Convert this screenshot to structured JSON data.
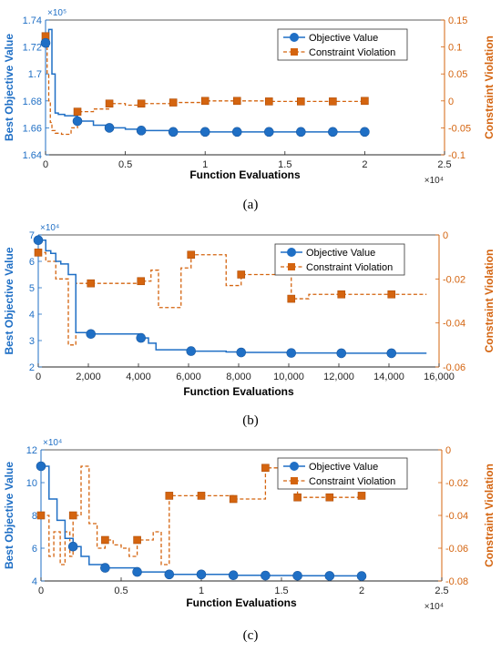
{
  "colors": {
    "objective": "#1f6fc5",
    "constraint": "#d4640f",
    "axis": "#262626"
  },
  "chart_data": [
    {
      "panel_label": "(a)",
      "type": "line",
      "xlabel": "Function Evaluations",
      "ylabel_left": "Best Objective Value",
      "ylabel_right": "Constraint Violation",
      "x_multiplier": "×10⁴",
      "y_multiplier": "×10⁵",
      "xlim": [
        0,
        2.5
      ],
      "ylim_left": [
        1.64,
        1.74
      ],
      "ylim_right": [
        -0.1,
        0.15
      ],
      "x_ticks": [
        "0",
        "0.5",
        "1",
        "1.5",
        "2",
        "2.5"
      ],
      "y_ticks_left": [
        "1.64",
        "1.66",
        "1.68",
        "1.7",
        "1.72",
        "1.74"
      ],
      "y_ticks_right": [
        "-0.1",
        "-0.05",
        "0",
        "0.05",
        "0.1",
        "0.15"
      ],
      "legend": {
        "position": "top-right",
        "entries": [
          "Objective Value",
          "Constraint Violation"
        ]
      },
      "series": [
        {
          "name": "Objective Value",
          "axis": "left",
          "x": [
            0,
            0.02,
            0.04,
            0.06,
            0.08,
            0.12,
            0.2,
            0.3,
            0.4,
            0.5,
            0.6,
            0.8,
            1.0,
            1.2,
            1.4,
            1.6,
            1.8,
            2.0
          ],
          "y": [
            1.723,
            1.733,
            1.7,
            1.671,
            1.67,
            1.669,
            1.665,
            1.662,
            1.66,
            1.659,
            1.658,
            1.657,
            1.657,
            1.657,
            1.657,
            1.657,
            1.657,
            1.657
          ],
          "marker_x": [
            0,
            0.2,
            0.4,
            0.6,
            0.8,
            1.0,
            1.2,
            1.4,
            1.6,
            1.8,
            2.0
          ],
          "marker_y": [
            1.723,
            1.665,
            1.66,
            1.658,
            1.657,
            1.657,
            1.657,
            1.657,
            1.657,
            1.657,
            1.657
          ]
        },
        {
          "name": "Constraint Violation",
          "axis": "right",
          "x": [
            0,
            0.01,
            0.02,
            0.03,
            0.04,
            0.06,
            0.1,
            0.16,
            0.2,
            0.3,
            0.4,
            0.5,
            0.6,
            0.8,
            1.0,
            1.2,
            1.4,
            1.6,
            1.8,
            2.0
          ],
          "y": [
            0.12,
            0.05,
            0.0,
            -0.04,
            -0.055,
            -0.06,
            -0.062,
            -0.05,
            -0.02,
            -0.015,
            -0.005,
            -0.008,
            -0.005,
            -0.003,
            0.0,
            0.0,
            -0.001,
            -0.001,
            -0.001,
            0.0
          ],
          "marker_x": [
            0,
            0.2,
            0.4,
            0.6,
            0.8,
            1.0,
            1.2,
            1.4,
            1.6,
            1.8,
            2.0
          ],
          "marker_y": [
            0.12,
            -0.02,
            -0.005,
            -0.005,
            -0.003,
            0.0,
            0.0,
            -0.001,
            -0.001,
            -0.001,
            0.0
          ]
        }
      ]
    },
    {
      "panel_label": "(b)",
      "type": "line",
      "xlabel": "Function Evaluations",
      "ylabel_left": "Best Objective Value",
      "ylabel_right": "Constraint Violation",
      "x_multiplier": "",
      "y_multiplier": "×10⁴",
      "xlim": [
        0,
        16000
      ],
      "ylim_left": [
        2,
        7
      ],
      "ylim_right": [
        -0.06,
        0
      ],
      "x_ticks": [
        "0",
        "2,000",
        "4,000",
        "6,000",
        "8,000",
        "10,000",
        "12,000",
        "14,000",
        "16,000"
      ],
      "y_ticks_left": [
        "2",
        "3",
        "4",
        "5",
        "6",
        "7"
      ],
      "y_ticks_right": [
        "-0.06",
        "-0.04",
        "-0.02",
        "0"
      ],
      "legend": {
        "position": "top-right",
        "entries": [
          "Objective Value",
          "Constraint Violation"
        ]
      },
      "series": [
        {
          "name": "Objective Value",
          "axis": "left",
          "x": [
            0,
            150,
            300,
            500,
            700,
            900,
            1200,
            1500,
            2000,
            3000,
            4100,
            4400,
            4700,
            6000,
            6100,
            7500,
            8100,
            10100,
            12100,
            14100,
            15500
          ],
          "y": [
            6.8,
            6.8,
            6.4,
            6.3,
            6.0,
            5.9,
            5.5,
            3.3,
            3.25,
            3.25,
            3.1,
            2.9,
            2.65,
            2.63,
            2.6,
            2.57,
            2.55,
            2.53,
            2.52,
            2.52,
            2.52
          ],
          "marker_x": [
            0,
            2100,
            4100,
            6100,
            8100,
            10100,
            12100,
            14100
          ],
          "marker_y": [
            6.8,
            3.25,
            3.1,
            2.6,
            2.55,
            2.53,
            2.52,
            2.52
          ]
        },
        {
          "name": "Constraint Violation",
          "axis": "right",
          "x": [
            0,
            300,
            700,
            1200,
            1500,
            2100,
            3000,
            4100,
            4500,
            4800,
            5400,
            5700,
            6100,
            7000,
            7500,
            8100,
            9500,
            10100,
            10800,
            12100,
            14100,
            15500
          ],
          "y": [
            -0.008,
            -0.012,
            -0.02,
            -0.05,
            -0.022,
            -0.022,
            -0.022,
            -0.021,
            -0.016,
            -0.033,
            -0.033,
            -0.015,
            -0.009,
            -0.009,
            -0.023,
            -0.018,
            -0.015,
            -0.029,
            -0.027,
            -0.027,
            -0.027,
            -0.027
          ],
          "marker_x": [
            0,
            2100,
            4100,
            6100,
            8100,
            10100,
            12100,
            14100
          ],
          "marker_y": [
            -0.008,
            -0.022,
            -0.021,
            -0.009,
            -0.018,
            -0.029,
            -0.027,
            -0.027
          ]
        }
      ]
    },
    {
      "panel_label": "(c)",
      "type": "line",
      "xlabel": "Function Evaluations",
      "ylabel_left": "Best Objective Value",
      "ylabel_right": "Constraint Violation",
      "x_multiplier": "×10⁴",
      "y_multiplier": "×10⁴",
      "xlim": [
        0,
        2.5
      ],
      "ylim_left": [
        4,
        12
      ],
      "ylim_right": [
        -0.08,
        0
      ],
      "x_ticks": [
        "0",
        "0.5",
        "1",
        "1.5",
        "2",
        "2.5"
      ],
      "y_ticks_left": [
        "4",
        "6",
        "8",
        "10",
        "12"
      ],
      "y_ticks_right": [
        "-0.08",
        "-0.06",
        "-0.04",
        "-0.02",
        "0"
      ],
      "legend": {
        "position": "top-right",
        "entries": [
          "Objective Value",
          "Constraint Violation"
        ]
      },
      "series": [
        {
          "name": "Objective Value",
          "axis": "left",
          "x": [
            0,
            0.05,
            0.1,
            0.15,
            0.2,
            0.25,
            0.3,
            0.4,
            0.6,
            0.8,
            1.0,
            1.2,
            1.4,
            1.6,
            1.8,
            2.0
          ],
          "y": [
            11.0,
            9.0,
            7.7,
            6.6,
            6.1,
            5.5,
            5.0,
            4.8,
            4.55,
            4.4,
            4.4,
            4.35,
            4.33,
            4.32,
            4.31,
            4.3
          ],
          "marker_x": [
            0,
            0.2,
            0.4,
            0.6,
            0.8,
            1.0,
            1.2,
            1.4,
            1.6,
            1.8,
            2.0
          ],
          "marker_y": [
            11.0,
            6.1,
            4.8,
            4.55,
            4.4,
            4.4,
            4.35,
            4.33,
            4.32,
            4.31,
            4.3
          ]
        },
        {
          "name": "Constraint Violation",
          "axis": "right",
          "x": [
            0,
            0.05,
            0.08,
            0.12,
            0.15,
            0.18,
            0.2,
            0.25,
            0.3,
            0.35,
            0.4,
            0.45,
            0.5,
            0.55,
            0.6,
            0.7,
            0.75,
            0.8,
            1.0,
            1.2,
            1.4,
            1.6,
            1.8,
            2.0
          ],
          "y": [
            -0.04,
            -0.065,
            -0.05,
            -0.07,
            -0.05,
            -0.065,
            -0.04,
            -0.01,
            -0.045,
            -0.06,
            -0.055,
            -0.058,
            -0.06,
            -0.065,
            -0.055,
            -0.05,
            -0.07,
            -0.028,
            -0.028,
            -0.03,
            -0.011,
            -0.029,
            -0.029,
            -0.028
          ],
          "marker_x": [
            0,
            0.2,
            0.4,
            0.6,
            0.8,
            1.0,
            1.2,
            1.4,
            1.6,
            1.8,
            2.0
          ],
          "marker_y": [
            -0.04,
            -0.04,
            -0.055,
            -0.055,
            -0.028,
            -0.028,
            -0.03,
            -0.011,
            -0.029,
            -0.029,
            -0.028
          ]
        }
      ]
    }
  ]
}
